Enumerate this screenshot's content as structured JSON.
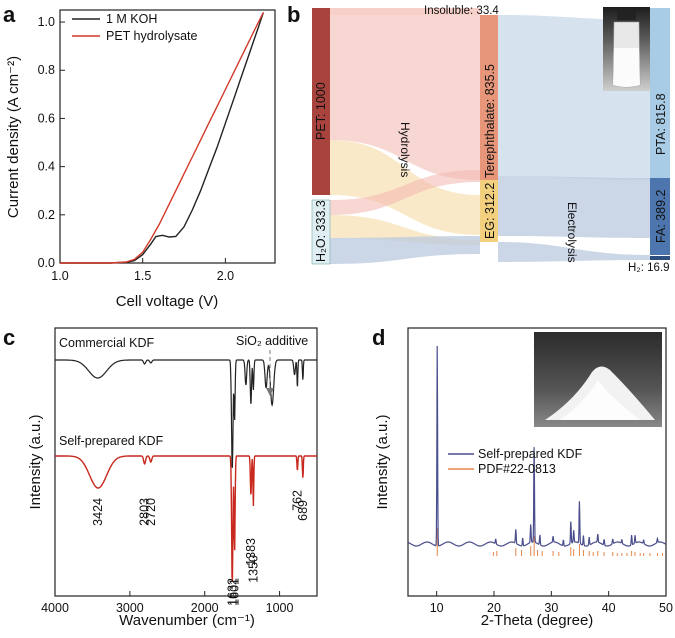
{
  "panel_letters": {
    "a": "a",
    "b": "b",
    "c": "c",
    "d": "d"
  },
  "chart_data": [
    {
      "panel": "a",
      "type": "line",
      "xlabel": "Cell voltage (V)",
      "ylabel": "Current density (A cm⁻²)",
      "xlim": [
        1.0,
        2.3
      ],
      "ylim": [
        0.0,
        1.05
      ],
      "xticks": [
        "1.0",
        "1.5",
        "2.0"
      ],
      "xtick_values": [
        1.0,
        1.5,
        2.0
      ],
      "yticks": [
        "0.0",
        "0.2",
        "0.4",
        "0.6",
        "0.8",
        "1.0"
      ],
      "ytick_values": [
        0.0,
        0.2,
        0.4,
        0.6,
        0.8,
        1.0
      ],
      "series": [
        {
          "name": "1 M KOH",
          "color": "#222222",
          "x": [
            1.0,
            1.3,
            1.4,
            1.45,
            1.5,
            1.55,
            1.58,
            1.62,
            1.66,
            1.7,
            1.75,
            1.8,
            1.85,
            1.9,
            1.95,
            2.0,
            2.05,
            2.1,
            2.15,
            2.2,
            2.23
          ],
          "y": [
            0.0,
            0.0,
            0.003,
            0.01,
            0.035,
            0.08,
            0.11,
            0.115,
            0.108,
            0.11,
            0.15,
            0.22,
            0.3,
            0.39,
            0.48,
            0.58,
            0.68,
            0.78,
            0.88,
            0.98,
            1.04
          ]
        },
        {
          "name": "PET hydrolysate",
          "color": "#d43a2a",
          "x": [
            1.0,
            1.3,
            1.4,
            1.45,
            1.5,
            1.55,
            1.6,
            1.65,
            1.7,
            1.75,
            1.8,
            1.85,
            1.9,
            1.95,
            2.0,
            2.05,
            2.1,
            2.15,
            2.2,
            2.23
          ],
          "y": [
            0.0,
            0.0,
            0.004,
            0.015,
            0.045,
            0.1,
            0.16,
            0.23,
            0.3,
            0.37,
            0.44,
            0.51,
            0.58,
            0.65,
            0.72,
            0.79,
            0.86,
            0.93,
            1.0,
            1.04
          ]
        }
      ]
    },
    {
      "panel": "b",
      "type": "sankey",
      "nodes": [
        {
          "id": "pet",
          "label": "PET: 1000"
        },
        {
          "id": "h2o",
          "label": "H₂O: 333.3"
        },
        {
          "id": "tere",
          "label": "Terephthalate: 835.5"
        },
        {
          "id": "eg",
          "label": "EG: 312.2"
        },
        {
          "id": "pta",
          "label": "PTA: 815.8"
        },
        {
          "id": "fa",
          "label": "FA: 389.2"
        }
      ],
      "small_labels": {
        "insoluble": "Insoluble: 33.4",
        "h2": "H₂: 16.9"
      },
      "process_labels": {
        "hydrolysis": "Hydrolysis",
        "electrolysis": "Electrolysis"
      }
    },
    {
      "panel": "c",
      "type": "line",
      "xlabel": "Wavenumber (cm⁻¹)",
      "ylabel": "Intensity (a.u.)",
      "xlim": [
        4000,
        500
      ],
      "xticks": [
        "4000",
        "3000",
        "2000",
        "1000"
      ],
      "xtick_values": [
        4000,
        3000,
        2000,
        1000
      ],
      "series": [
        {
          "name": "Commercial KDF",
          "color": "#222222"
        },
        {
          "name": "Self-prepared KDF",
          "color": "#c8281e"
        }
      ],
      "annotations": [
        "SiO₂ additive"
      ],
      "peak_labels": [
        {
          "text": "3424",
          "x": 3424
        },
        {
          "text": "2803",
          "x": 2803
        },
        {
          "text": "2720",
          "x": 2720
        },
        {
          "text": "1632",
          "x": 1632
        },
        {
          "text": "1601",
          "x": 1601
        },
        {
          "text": "1383",
          "x": 1383
        },
        {
          "text": "1350",
          "x": 1350
        },
        {
          "text": "762",
          "x": 762
        },
        {
          "text": "689",
          "x": 689
        }
      ]
    },
    {
      "panel": "d",
      "type": "line",
      "xlabel": "2-Theta (degree)",
      "ylabel": "Intensity (a.u.)",
      "xlim": [
        5,
        50
      ],
      "xticks": [
        "10",
        "20",
        "30",
        "40",
        "50"
      ],
      "xtick_values": [
        10,
        20,
        30,
        40,
        50
      ],
      "series": [
        {
          "name": "Self-prepared KDF",
          "color": "#4a4e8c"
        },
        {
          "name": "PDF#22-0813",
          "color": "#e8854a"
        }
      ]
    }
  ]
}
